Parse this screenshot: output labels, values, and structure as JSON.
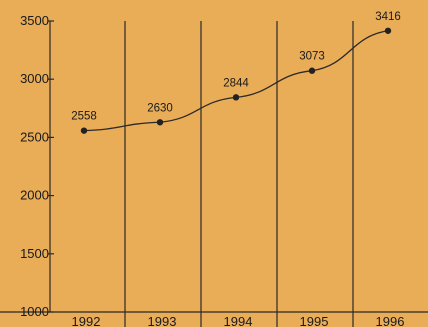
{
  "chart_data": {
    "type": "line",
    "categories": [
      "1992",
      "1993",
      "1994",
      "1995",
      "1996"
    ],
    "series": [
      {
        "values": [
          2558,
          2630,
          2844,
          3073,
          3416
        ]
      }
    ],
    "data_labels": [
      "2558",
      "2630",
      "2844",
      "3073",
      "3416"
    ],
    "y_ticks": [
      1000,
      1500,
      2000,
      2500,
      3000,
      3500
    ],
    "y_tick_labels": [
      "1000",
      "1500",
      "2000",
      "2500",
      "3000",
      "3500"
    ],
    "ylim": [
      1000,
      3500
    ],
    "title": "",
    "xlabel": "",
    "ylabel": "",
    "grid": "vertical",
    "colors": {
      "background": "#e9ac57",
      "line": "#2a2a2a",
      "text": "#1a1a1a"
    }
  }
}
